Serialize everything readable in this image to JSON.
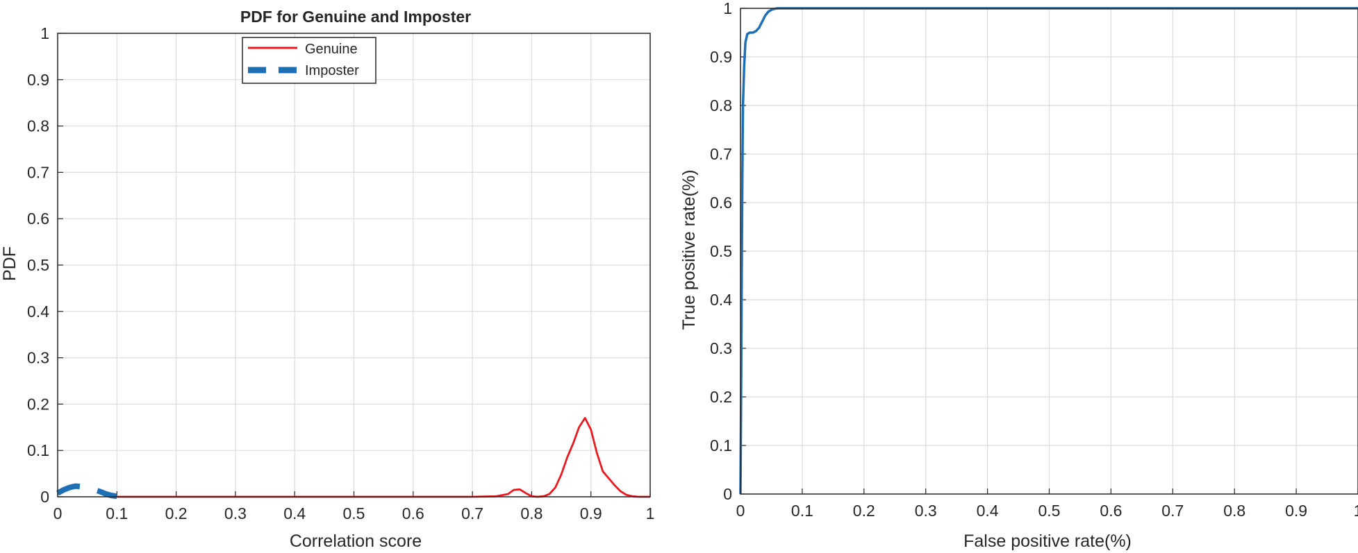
{
  "chart_data": [
    {
      "type": "line",
      "title": "PDF for Genuine and Imposter",
      "xlabel": "Correlation score",
      "ylabel": "PDF",
      "xlim": [
        0,
        1
      ],
      "ylim": [
        0,
        1
      ],
      "xticks": [
        "0",
        "0.1",
        "0.2",
        "0.3",
        "0.4",
        "0.5",
        "0.6",
        "0.7",
        "0.8",
        "0.9",
        "1"
      ],
      "yticks": [
        "0",
        "0.1",
        "0.2",
        "0.3",
        "0.4",
        "0.5",
        "0.6",
        "0.7",
        "0.8",
        "0.9",
        "1"
      ],
      "grid": true,
      "legend_position": "top-center",
      "series": [
        {
          "name": "Genuine",
          "color": "#e8191f",
          "style": "solid",
          "x": [
            0.1,
            0.3,
            0.5,
            0.7,
            0.74,
            0.76,
            0.77,
            0.78,
            0.79,
            0.8,
            0.81,
            0.82,
            0.83,
            0.84,
            0.85,
            0.86,
            0.87,
            0.88,
            0.89,
            0.9,
            0.91,
            0.92,
            0.93,
            0.94,
            0.95,
            0.96,
            0.97,
            0.98,
            1.0
          ],
          "y": [
            0,
            0,
            0,
            0,
            0.001,
            0.006,
            0.015,
            0.016,
            0.008,
            0.001,
            0.0,
            0.001,
            0.006,
            0.02,
            0.048,
            0.085,
            0.115,
            0.15,
            0.17,
            0.145,
            0.095,
            0.055,
            0.04,
            0.025,
            0.012,
            0.004,
            0.001,
            0,
            0
          ]
        },
        {
          "name": "Imposter",
          "color": "#1f6fb5",
          "style": "dashed",
          "x": [
            0.0,
            0.01,
            0.02,
            0.03,
            0.04,
            0.05,
            0.06,
            0.07,
            0.08,
            0.09,
            0.1
          ],
          "y": [
            0.008,
            0.015,
            0.02,
            0.023,
            0.022,
            0.019,
            0.016,
            0.012,
            0.007,
            0.003,
            0.001
          ]
        }
      ]
    },
    {
      "type": "line",
      "title": "",
      "xlabel": "False positive rate(%)",
      "ylabel": "True positive rate(%)",
      "xlim": [
        0,
        1
      ],
      "ylim": [
        0,
        1
      ],
      "xticks": [
        "0",
        "0.1",
        "0.2",
        "0.3",
        "0.4",
        "0.5",
        "0.6",
        "0.7",
        "0.8",
        "0.9",
        "1"
      ],
      "yticks": [
        "0",
        "0.1",
        "0.2",
        "0.3",
        "0.4",
        "0.5",
        "0.6",
        "0.7",
        "0.8",
        "0.9",
        "1"
      ],
      "grid": true,
      "series": [
        {
          "color": "#1f6fb5",
          "style": "solid",
          "x": [
            0.0,
            0.001,
            0.002,
            0.003,
            0.004,
            0.006,
            0.008,
            0.011,
            0.015,
            0.02,
            0.025,
            0.03,
            0.035,
            0.04,
            0.045,
            0.05,
            0.055,
            0.06,
            0.065,
            0.07,
            0.1,
            0.5,
            1.0
          ],
          "y": [
            0.0,
            0.2,
            0.45,
            0.65,
            0.8,
            0.88,
            0.93,
            0.947,
            0.95,
            0.95,
            0.953,
            0.96,
            0.972,
            0.985,
            0.993,
            0.997,
            0.999,
            1.0,
            1.0,
            1.0,
            1.0,
            1.0,
            1.0
          ]
        }
      ]
    }
  ]
}
